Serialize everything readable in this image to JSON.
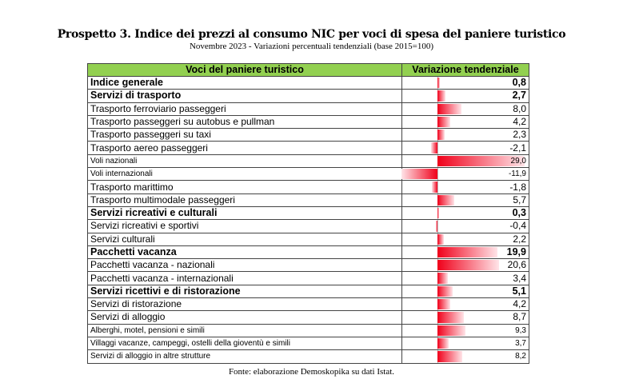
{
  "title": "Prospetto 3. Indice dei prezzi al consumo NIC per voci di spesa del paniere turistico",
  "subtitle": "Novembre 2023 - Variazioni percentuali tendenziali (base 2015=100)",
  "headers": [
    "Voci del paniere turistico",
    "Variazione tendenziale"
  ],
  "rows": [
    {
      "label": "Indice generale",
      "value": "0,8",
      "v": 0.8,
      "style": "bold"
    },
    {
      "label": "Servizi di trasporto",
      "value": "2,7",
      "v": 2.7,
      "style": "bold"
    },
    {
      "label": "Trasporto ferroviario passeggeri",
      "value": "8,0",
      "v": 8.0,
      "style": ""
    },
    {
      "label": "Trasporto passeggeri su autobus e pullman",
      "value": "4,2",
      "v": 4.2,
      "style": ""
    },
    {
      "label": "Trasporto passeggeri su taxi",
      "value": "2,3",
      "v": 2.3,
      "style": ""
    },
    {
      "label": "Trasporto aereo passeggeri",
      "value": "-2,1",
      "v": -2.1,
      "style": ""
    },
    {
      "label": "Voli nazionali",
      "value": "29,0",
      "v": 29.0,
      "style": "small"
    },
    {
      "label": "Voli internazionali",
      "value": "-11,9",
      "v": -11.9,
      "style": "small"
    },
    {
      "label": "Trasporto marittimo",
      "value": "-1,8",
      "v": -1.8,
      "style": ""
    },
    {
      "label": "Trasporto multimodale passeggeri",
      "value": "5,7",
      "v": 5.7,
      "style": ""
    },
    {
      "label": "Servizi ricreativi e culturali",
      "value": "0,3",
      "v": 0.3,
      "style": "bold"
    },
    {
      "label": "Servizi ricreativi e sportivi",
      "value": "-0,4",
      "v": -0.4,
      "style": ""
    },
    {
      "label": "Servizi culturali",
      "value": "2,2",
      "v": 2.2,
      "style": ""
    },
    {
      "label": "Pacchetti vacanza",
      "value": "19,9",
      "v": 19.9,
      "style": "bold"
    },
    {
      "label": "Pacchetti vacanza - nazionali",
      "value": "20,6",
      "v": 20.6,
      "style": ""
    },
    {
      "label": "Pacchetti vacanza - internazionali",
      "value": "3,4",
      "v": 3.4,
      "style": ""
    },
    {
      "label": "Servizi ricettivi e di ristorazione",
      "value": "5,1",
      "v": 5.1,
      "style": "bold"
    },
    {
      "label": "Servizi di ristorazione",
      "value": "4,2",
      "v": 4.2,
      "style": ""
    },
    {
      "label": "Servizi di alloggio",
      "value": "8,7",
      "v": 8.7,
      "style": ""
    },
    {
      "label": "Alberghi, motel, pensioni e simili",
      "value": "9,3",
      "v": 9.3,
      "style": "small"
    },
    {
      "label": "Villaggi vacanze, campeggi, ostelli della gioventù e simili",
      "value": "3,7",
      "v": 3.7,
      "style": "small"
    },
    {
      "label": "Servizi di alloggio in altre strutture",
      "value": "8,2",
      "v": 8.2,
      "style": "small"
    }
  ],
  "source": "Fonte: elaborazione Demoskopika su dati Istat."
}
